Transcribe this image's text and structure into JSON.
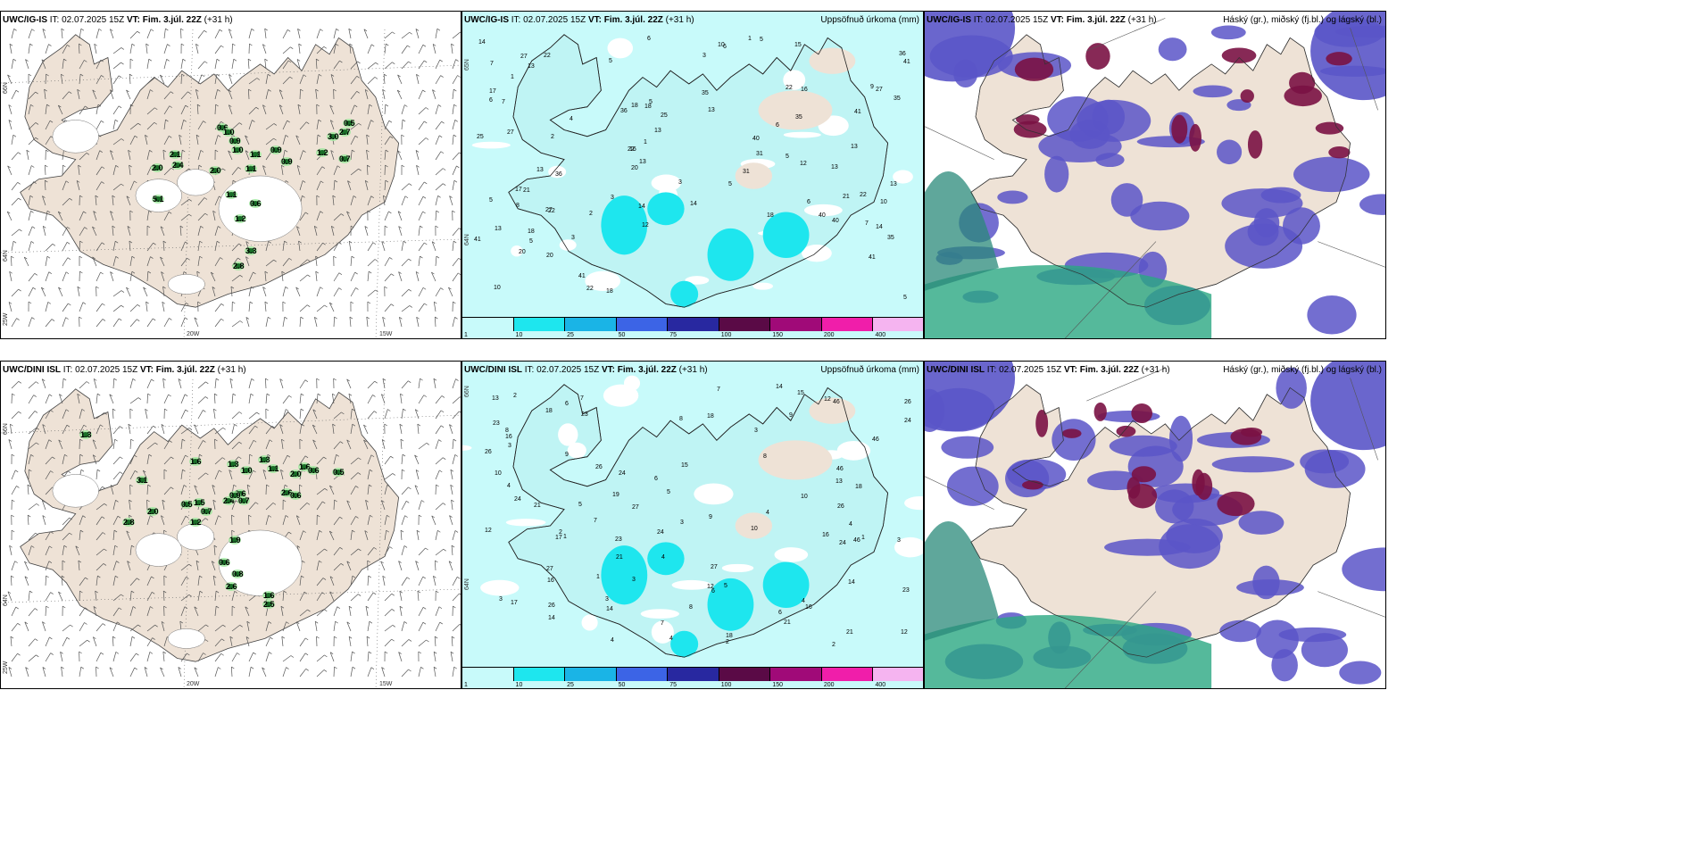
{
  "panels": [
    {
      "id": "p1",
      "title_bold1": "UWC/IG-IS",
      "title_it": " IT: 02.07.2025 15Z ",
      "title_bold2": "VT: Fim. 3.júl. 22Z",
      "title_tail": " (+31 h)",
      "right": ""
    },
    {
      "id": "p2",
      "title_bold1": "UWC/IG-IS",
      "title_it": " IT: 02.07.2025 15Z ",
      "title_bold2": "VT: Fim. 3.júl. 22Z",
      "title_tail": " (+31 h)",
      "right": "Uppsöfnuð úrkoma (mm)"
    },
    {
      "id": "p3",
      "title_bold1": "UWC/IG-IS",
      "title_it": " IT: 02.07.2025 15Z ",
      "title_bold2": "VT: Fim. 3.júl. 22Z",
      "title_tail": " (+31 h)",
      "right": "Háský (gr.), miðský (fj.bl.) og lágský (bl.)"
    },
    {
      "id": "p4",
      "title_bold1": "UWC/DINI ISL",
      "title_it": " IT: 02.07.2025 15Z ",
      "title_bold2": "VT: Fim. 3.júl. 22Z",
      "title_tail": " (+31 h)",
      "right": ""
    },
    {
      "id": "p5",
      "title_bold1": "UWC/DINI ISL",
      "title_it": " IT: 02.07.2025 15Z ",
      "title_bold2": "VT: Fim. 3.júl. 22Z",
      "title_tail": " (+31 h)",
      "right": "Uppsöfnuð úrkoma (mm)"
    },
    {
      "id": "p6",
      "title_bold1": "UWC/DINI ISL",
      "title_it": " IT: 02.07.2025 15Z ",
      "title_bold2": "VT: Fim. 3.júl. 22Z",
      "title_tail": " (+31 h)",
      "right": "Háský (gr.), miðský (fj.bl.) og lágský (bl.)"
    }
  ],
  "axis_labels": {
    "lat66": "66N",
    "lat64": "64N",
    "lat25": "25W",
    "lon20": "20W",
    "lon15": "15W"
  },
  "colorbar": {
    "ticks": [
      "1",
      "10",
      "25",
      "50",
      "75",
      "100",
      "150",
      "200",
      "400"
    ],
    "colors": [
      "#c8fafa",
      "#1ee6ee",
      "#1ab4e6",
      "#3c64e6",
      "#2828a0",
      "#5a0a46",
      "#a00a78",
      "#f01eaa",
      "#f5b4f0"
    ]
  },
  "wind_panel_numbers": {
    "top": [
      "0.5",
      "2.7",
      "3.0",
      "0.6",
      "1.0",
      "0.9",
      "1.0",
      "1.1",
      "0.9",
      "2.1",
      "2.4",
      "2.0",
      "2.0",
      "1.1",
      "0.9",
      "1.2",
      "0.7",
      "1.1",
      "0.6",
      "1.2",
      "5.1",
      "3.3",
      "2.8"
    ],
    "bottom": [
      "1.3",
      "1.6",
      "1.3",
      "1.0",
      "1.3",
      "1.1",
      "2.0",
      "1.6",
      "0.6",
      "0.5",
      "3.1",
      "0.5",
      "1.5",
      "0.7",
      "2.4",
      "0.6",
      "0.7",
      "2.6",
      "0.6",
      "0.9",
      "2.8",
      "2.0",
      "1.2",
      "1.9",
      "0.6",
      "0.8",
      "2.6",
      "1.6",
      "2.5"
    ]
  },
  "precip_numbers": {
    "top": [
      "3",
      "4",
      "6",
      "8",
      "9",
      "10",
      "11",
      "12",
      "13",
      "14",
      "15",
      "16",
      "17",
      "18",
      "20",
      "21",
      "22",
      "25",
      "27",
      "31",
      "35",
      "36",
      "40",
      "41",
      "2",
      "1",
      "5",
      "7"
    ],
    "bottom": [
      "3",
      "4",
      "6",
      "8",
      "9",
      "10",
      "11",
      "12",
      "13",
      "14",
      "15",
      "16",
      "17",
      "18",
      "19",
      "21",
      "23",
      "24",
      "26",
      "27",
      "46",
      "2",
      "1",
      "5",
      "7"
    ]
  },
  "colors": {
    "land": "#eee2d6",
    "green_dark": "#1a6e28",
    "green_light": "#9ee89e",
    "cloud_low": "#5a55c8",
    "cloud_mid": "#7a1244",
    "cloud_high": "#2aa882"
  }
}
